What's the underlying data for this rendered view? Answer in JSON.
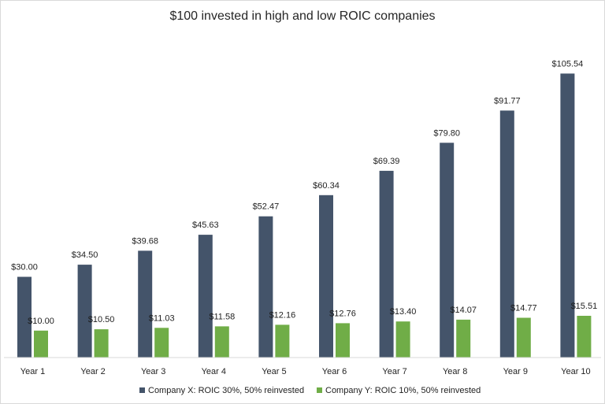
{
  "chart_data": {
    "type": "bar",
    "title": "$100 invested  in high and low ROIC companies",
    "xlabel": "",
    "ylabel": "",
    "ylim": [
      0,
      110
    ],
    "grid": false,
    "legend_position": "bottom",
    "categories": [
      "Year 1",
      "Year 2",
      "Year 3",
      "Year 4",
      "Year 5",
      "Year 6",
      "Year 7",
      "Year 8",
      "Year 9",
      "Year 10"
    ],
    "series": [
      {
        "name": "Company X: ROIC 30%, 50% reinvested",
        "color": "#44546a",
        "values": [
          30.0,
          34.5,
          39.68,
          45.63,
          52.47,
          60.34,
          69.39,
          79.8,
          91.77,
          105.54
        ],
        "labels": [
          "$30.00",
          "$34.50",
          "$39.68",
          "$45.63",
          "$52.47",
          "$60.34",
          "$69.39",
          "$79.80",
          "$91.77",
          "$105.54"
        ]
      },
      {
        "name": "Company Y: ROIC 10%, 50% reinvested",
        "color": "#70ad47",
        "values": [
          10.0,
          10.5,
          11.03,
          11.58,
          12.16,
          12.76,
          13.4,
          14.07,
          14.77,
          15.51
        ],
        "labels": [
          "$10.00",
          "$10.50",
          "$11.03",
          "$11.58",
          "$12.16",
          "$12.76",
          "$13.40",
          "$14.07",
          "$14.77",
          "$15.51"
        ]
      }
    ]
  }
}
